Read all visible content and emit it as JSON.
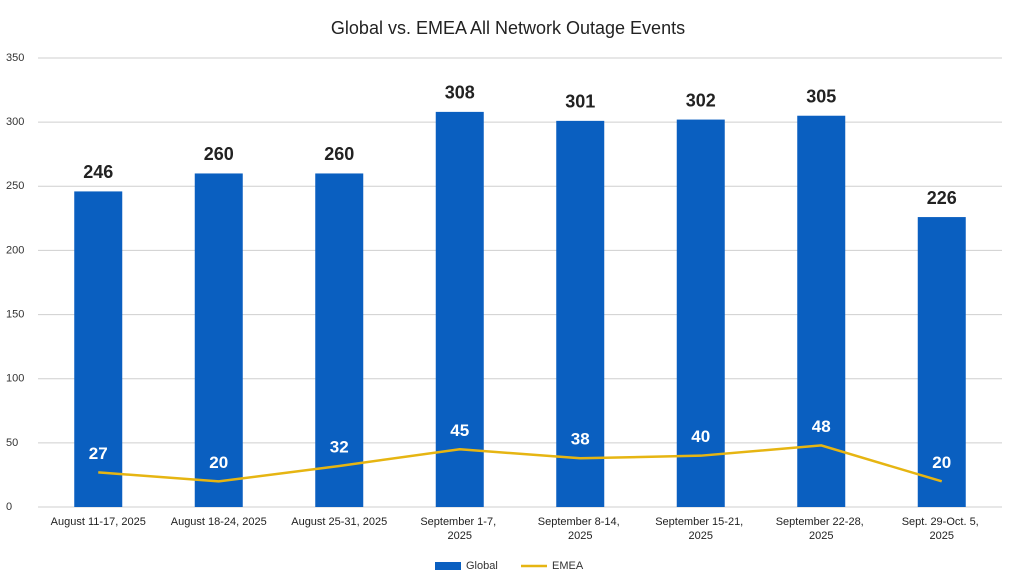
{
  "chart_data": {
    "type": "bar-line",
    "title": "Global vs. EMEA All Network Outage Events",
    "categories": [
      "August 11-17, 2025",
      "August 18-24, 2025",
      "August 25-31, 2025",
      "September 1-7, 2025",
      "September 8-14, 2025",
      "September 15-21, 2025",
      "September 22-28, 2025",
      "Sept. 29-Oct. 5, 2025"
    ],
    "series": [
      {
        "name": "Global",
        "type": "bar",
        "color": "#0a5fc0",
        "values": [
          246,
          260,
          260,
          308,
          301,
          302,
          305,
          226
        ]
      },
      {
        "name": "EMEA",
        "type": "line",
        "color": "#e6b512",
        "values": [
          27,
          20,
          32,
          45,
          38,
          40,
          48,
          20
        ]
      }
    ],
    "ylim": [
      0,
      350
    ],
    "yticks": [
      0,
      50,
      100,
      150,
      200,
      250,
      300,
      350
    ],
    "grid": true,
    "legend": "bottom"
  }
}
